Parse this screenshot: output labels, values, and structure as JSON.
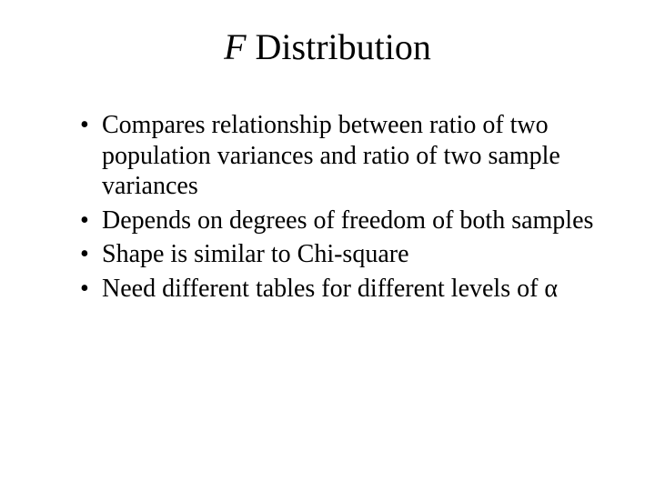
{
  "title": {
    "symbol": "F",
    "word": "Distribution"
  },
  "bullets": [
    "Compares relationship between ratio of two population variances and ratio of two sample variances",
    "Depends on degrees of freedom of both samples",
    "Shape is similar to Chi-square",
    "Need different tables for different levels of α"
  ],
  "style": {
    "background_color": "#ffffff",
    "text_color": "#000000",
    "title_fontsize_pt": 40,
    "body_fontsize_pt": 28,
    "font_family": "Times New Roman"
  }
}
